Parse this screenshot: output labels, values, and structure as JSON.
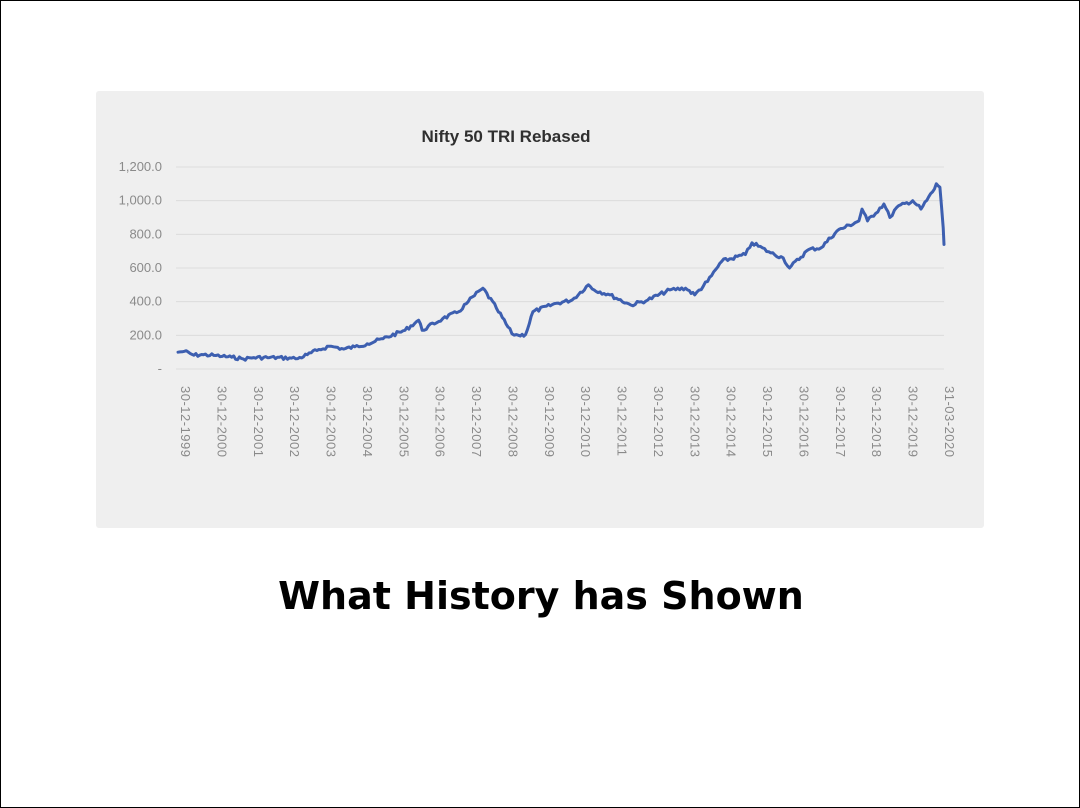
{
  "slide": {
    "title": "What History has Shown"
  },
  "chart_data": {
    "type": "line",
    "title": "Nifty 50 TRI Rebased",
    "xlabel": "",
    "ylabel": "",
    "ylim": [
      0,
      1200
    ],
    "y_ticks": [
      0,
      200,
      400,
      600,
      800,
      1000,
      1200
    ],
    "y_tick_labels": [
      "-",
      "200.0",
      "400.0",
      "600.0",
      "800.0",
      "1,000.0",
      "1,200.0"
    ],
    "grid": true,
    "x_tick_labels": [
      "30-12-1999",
      "30-12-2000",
      "30-12-2001",
      "30-12-2002",
      "30-12-2003",
      "30-12-2004",
      "30-12-2005",
      "30-12-2006",
      "30-12-2007",
      "30-12-2008",
      "30-12-2009",
      "30-12-2010",
      "30-12-2011",
      "30-12-2012",
      "30-12-2013",
      "30-12-2014",
      "30-12-2015",
      "30-12-2016",
      "30-12-2017",
      "30-12-2018",
      "30-12-2019",
      "31-03-2020"
    ],
    "color": "#3d5fb0",
    "series": [
      {
        "x": [
          "1999-12-30",
          "2000-03-01",
          "2000-06-01",
          "2000-09-01",
          "2000-12-30",
          "2001-03-01",
          "2001-06-01",
          "2001-09-20",
          "2001-12-30",
          "2002-06-01",
          "2002-12-30",
          "2003-03-01",
          "2003-06-01",
          "2003-09-01",
          "2003-12-30",
          "2004-03-01",
          "2004-05-17",
          "2004-09-01",
          "2004-12-30",
          "2005-06-01",
          "2005-12-30",
          "2006-05-10",
          "2006-06-14",
          "2006-12-30",
          "2007-06-01",
          "2007-09-01",
          "2007-12-30",
          "2008-01-21",
          "2008-06-01",
          "2008-10-27",
          "2008-12-30",
          "2009-03-09",
          "2009-05-18",
          "2009-12-30",
          "2010-06-01",
          "2010-11-05",
          "2010-12-30",
          "2011-06-01",
          "2011-12-20",
          "2012-06-01",
          "2012-12-30",
          "2013-06-01",
          "2013-08-28",
          "2013-12-30",
          "2014-05-16",
          "2014-12-30",
          "2015-03-04",
          "2015-09-01",
          "2015-12-30",
          "2016-02-29",
          "2016-09-01",
          "2016-12-30",
          "2017-06-01",
          "2017-12-30",
          "2018-01-29",
          "2018-03-23",
          "2018-08-29",
          "2018-10-26",
          "2018-12-30",
          "2019-06-03",
          "2019-08-22",
          "2019-12-30",
          "2020-01-17",
          "2020-02-20",
          "2020-03-23",
          "2020-03-31"
        ],
        "values": [
          100,
          105,
          82,
          85,
          80,
          75,
          70,
          60,
          68,
          68,
          65,
          62,
          85,
          110,
          135,
          130,
          118,
          132,
          150,
          180,
          230,
          290,
          230,
          300,
          340,
          400,
          470,
          480,
          360,
          210,
          200,
          205,
          340,
          390,
          410,
          500,
          470,
          440,
          380,
          410,
          470,
          480,
          440,
          520,
          640,
          680,
          750,
          690,
          660,
          600,
          710,
          720,
          820,
          880,
          950,
          880,
          980,
          900,
          960,
          1000,
          950,
          1070,
          1100,
          1080,
          840,
          740
        ]
      }
    ]
  }
}
